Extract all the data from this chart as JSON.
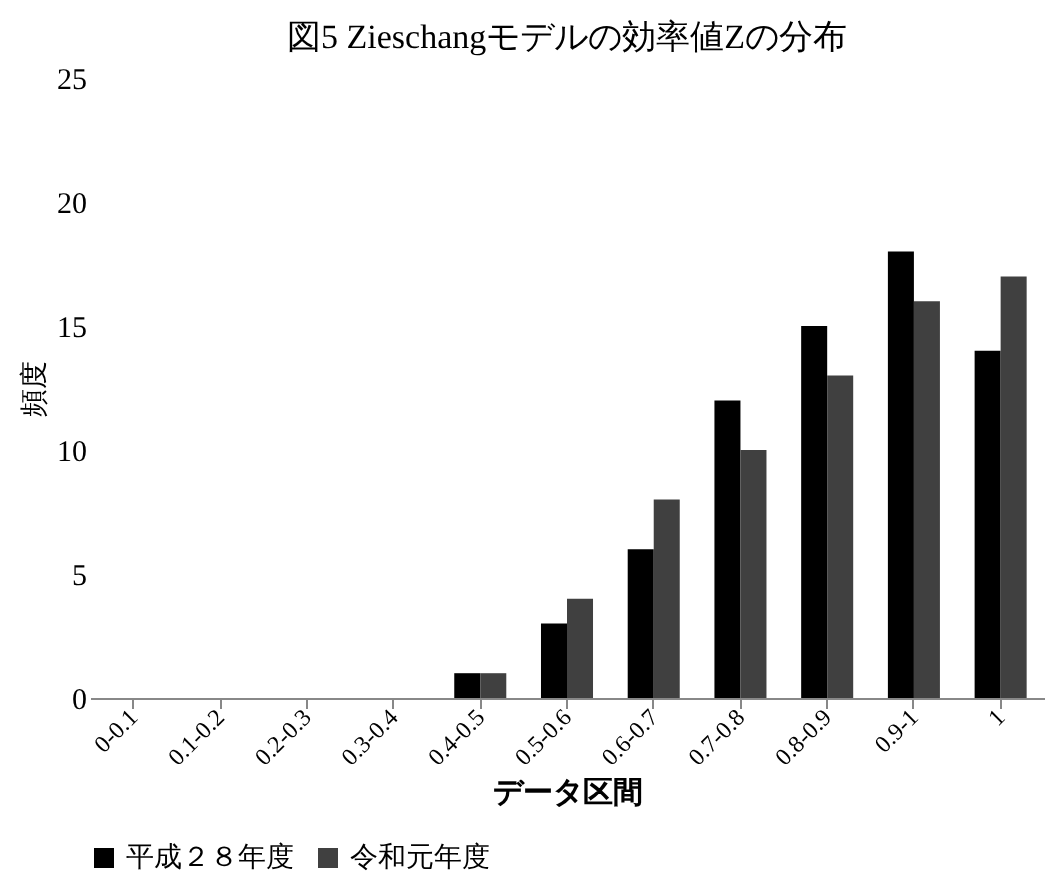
{
  "chart_data": {
    "type": "bar",
    "title": "図5 Zieschangモデルの効率値Zの分布",
    "xlabel": "データ区間",
    "ylabel": "頻度",
    "categories": [
      "0-0.1",
      "0.1-0.2",
      "0.2-0.3",
      "0.3-0.4",
      "0.4-0.5",
      "0.5-0.6",
      "0.6-0.7",
      "0.7-0.8",
      "0.8-0.9",
      "0.9-1",
      "1"
    ],
    "series": [
      {
        "name": "平成２８年度",
        "color": "#000000",
        "values": [
          0,
          0,
          0,
          0,
          1,
          3,
          6,
          12,
          15,
          18,
          14
        ]
      },
      {
        "name": "令和元年度",
        "color": "#404040",
        "values": [
          0,
          0,
          0,
          0,
          1,
          4,
          8,
          10,
          13,
          16,
          17
        ]
      }
    ],
    "ylim": [
      0,
      25
    ],
    "yticks": [
      0,
      5,
      10,
      15,
      20,
      25
    ],
    "grid": false,
    "legend": "bottom"
  }
}
